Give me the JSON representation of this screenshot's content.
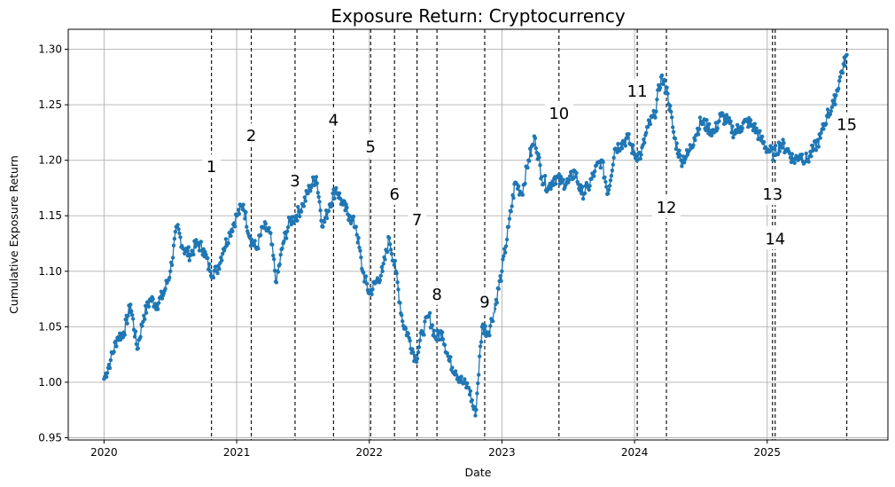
{
  "chart_data": {
    "type": "line",
    "title": "Exposure Return: Cryptocurrency",
    "xlabel": "Date",
    "ylabel": "Cumulative Exposure Return",
    "xlim": [
      2019.73,
      2025.91
    ],
    "ylim": [
      0.948,
      1.318
    ],
    "grid": true,
    "color": "#1f77b4",
    "x_ticks": [
      {
        "value": 2020,
        "label": "2020"
      },
      {
        "value": 2021,
        "label": "2021"
      },
      {
        "value": 2022,
        "label": "2022"
      },
      {
        "value": 2023,
        "label": "2023"
      },
      {
        "value": 2024,
        "label": "2024"
      },
      {
        "value": 2025,
        "label": "2025"
      }
    ],
    "y_ticks": [
      {
        "value": 0.95,
        "label": "0.95"
      },
      {
        "value": 1.0,
        "label": "1.00"
      },
      {
        "value": 1.05,
        "label": "1.05"
      },
      {
        "value": 1.1,
        "label": "1.10"
      },
      {
        "value": 1.15,
        "label": "1.15"
      },
      {
        "value": 1.2,
        "label": "1.20"
      },
      {
        "value": 1.25,
        "label": "1.25"
      },
      {
        "value": 1.3,
        "label": "1.30"
      }
    ],
    "series": [
      {
        "x": [
          2020.0,
          2020.05,
          2020.1,
          2020.15,
          2020.2,
          2020.25,
          2020.3,
          2020.35,
          2020.4,
          2020.45,
          2020.5,
          2020.55,
          2020.6,
          2020.65,
          2020.7,
          2020.75,
          2020.8,
          2020.85,
          2020.9,
          2020.95,
          2021.0,
          2021.05,
          2021.1,
          2021.15,
          2021.2,
          2021.25,
          2021.3,
          2021.35,
          2021.4,
          2021.45,
          2021.5,
          2021.55,
          2021.6,
          2021.65,
          2021.7,
          2021.75,
          2021.8,
          2021.85,
          2021.9,
          2021.95,
          2022.0,
          2022.05,
          2022.1,
          2022.15,
          2022.2,
          2022.25,
          2022.3,
          2022.35,
          2022.4,
          2022.45,
          2022.5,
          2022.55,
          2022.6,
          2022.65,
          2022.7,
          2022.75,
          2022.8,
          2022.85,
          2022.9,
          2022.95,
          2023.0,
          2023.05,
          2023.1,
          2023.15,
          2023.2,
          2023.25,
          2023.3,
          2023.35,
          2023.4,
          2023.45,
          2023.5,
          2023.55,
          2023.6,
          2023.65,
          2023.7,
          2023.75,
          2023.8,
          2023.85,
          2023.9,
          2023.95,
          2024.0,
          2024.05,
          2024.1,
          2024.15,
          2024.2,
          2024.25,
          2024.3,
          2024.35,
          2024.4,
          2024.45,
          2024.5,
          2024.55,
          2024.6,
          2024.65,
          2024.7,
          2024.75,
          2024.8,
          2024.85,
          2024.9,
          2024.95,
          2025.0,
          2025.05,
          2025.1,
          2025.15,
          2025.2,
          2025.25,
          2025.3,
          2025.35,
          2025.4,
          2025.45,
          2025.5,
          2025.55,
          2025.6
        ],
        "y": [
          1.003,
          1.02,
          1.04,
          1.045,
          1.07,
          1.03,
          1.06,
          1.075,
          1.07,
          1.08,
          1.1,
          1.14,
          1.12,
          1.115,
          1.125,
          1.12,
          1.1,
          1.1,
          1.12,
          1.135,
          1.15,
          1.16,
          1.13,
          1.12,
          1.14,
          1.135,
          1.09,
          1.125,
          1.145,
          1.15,
          1.16,
          1.175,
          1.185,
          1.14,
          1.16,
          1.175,
          1.16,
          1.15,
          1.14,
          1.1,
          1.08,
          1.09,
          1.1,
          1.13,
          1.1,
          1.055,
          1.04,
          1.02,
          1.045,
          1.06,
          1.04,
          1.045,
          1.02,
          1.01,
          1.0,
          0.995,
          0.97,
          1.05,
          1.045,
          1.07,
          1.1,
          1.14,
          1.18,
          1.17,
          1.2,
          1.22,
          1.185,
          1.175,
          1.185,
          1.18,
          1.18,
          1.19,
          1.17,
          1.175,
          1.19,
          1.2,
          1.17,
          1.21,
          1.215,
          1.22,
          1.205,
          1.205,
          1.23,
          1.24,
          1.275,
          1.26,
          1.22,
          1.2,
          1.205,
          1.22,
          1.235,
          1.23,
          1.225,
          1.24,
          1.235,
          1.225,
          1.23,
          1.235,
          1.23,
          1.22,
          1.21,
          1.205,
          1.215,
          1.21,
          1.2,
          1.205,
          1.2,
          1.21,
          1.22,
          1.24,
          1.25,
          1.275,
          1.295
        ]
      }
    ],
    "events": [
      {
        "label": "1",
        "x": 2020.81,
        "label_y": 1.195
      },
      {
        "label": "2",
        "x": 2021.11,
        "label_y": 1.223
      },
      {
        "label": "3",
        "x": 2021.44,
        "label_y": 1.182
      },
      {
        "label": "4",
        "x": 2021.73,
        "label_y": 1.237
      },
      {
        "label": "5",
        "x": 2022.01,
        "label_y": 1.213
      },
      {
        "label": "6",
        "x": 2022.19,
        "label_y": 1.17
      },
      {
        "label": "7",
        "x": 2022.36,
        "label_y": 1.147
      },
      {
        "label": "8",
        "x": 2022.51,
        "label_y": 1.08
      },
      {
        "label": "9",
        "x": 2022.87,
        "label_y": 1.073
      },
      {
        "label": "10",
        "x": 2023.43,
        "label_y": 1.243
      },
      {
        "label": "11",
        "x": 2024.02,
        "label_y": 1.263
      },
      {
        "label": "12",
        "x": 2024.24,
        "label_y": 1.158
      },
      {
        "label": "13",
        "x": 2025.04,
        "label_y": 1.17
      },
      {
        "label": "14",
        "x": 2025.06,
        "label_y": 1.13
      },
      {
        "label": "15",
        "x": 2025.6,
        "label_y": 1.233
      }
    ]
  }
}
